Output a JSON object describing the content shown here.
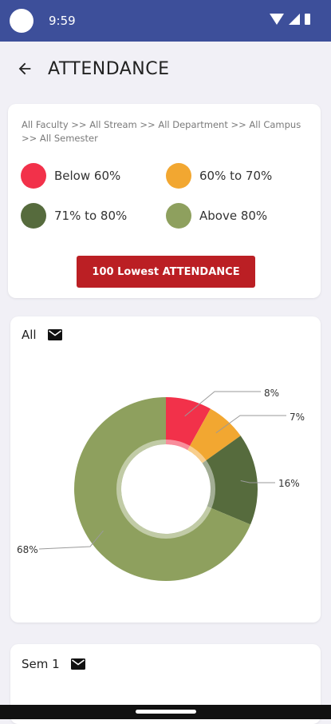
{
  "status": {
    "time": "9:59"
  },
  "header": {
    "title": "ATTENDANCE"
  },
  "filter": {
    "breadcrumb": "All Faculty >> All Stream >> All Department >> All Campus >> All Semester",
    "legend": [
      {
        "label": "Below 60%",
        "color": "#f2314a"
      },
      {
        "label": "60% to 70%",
        "color": "#f2a731"
      },
      {
        "label": "71% to 80%",
        "color": "#566b3d"
      },
      {
        "label": "Above 80%",
        "color": "#8ea05e"
      }
    ],
    "lowest_button": "100 Lowest ATTENDANCE"
  },
  "charts": [
    {
      "label": "All",
      "icon": "mail-icon"
    },
    {
      "label": "Sem 1",
      "icon": "mail-icon"
    }
  ],
  "chart_data": {
    "type": "pie",
    "title": "All",
    "donut": true,
    "categories": [
      "Below 60%",
      "60% to 70%",
      "71% to 80%",
      "Above 80%"
    ],
    "values": [
      8,
      7,
      16,
      68
    ],
    "data_labels": [
      "8%",
      "7%",
      "16%",
      "68%"
    ],
    "colors": [
      "#f2314a",
      "#f2a731",
      "#566b3d",
      "#8ea05e"
    ]
  }
}
